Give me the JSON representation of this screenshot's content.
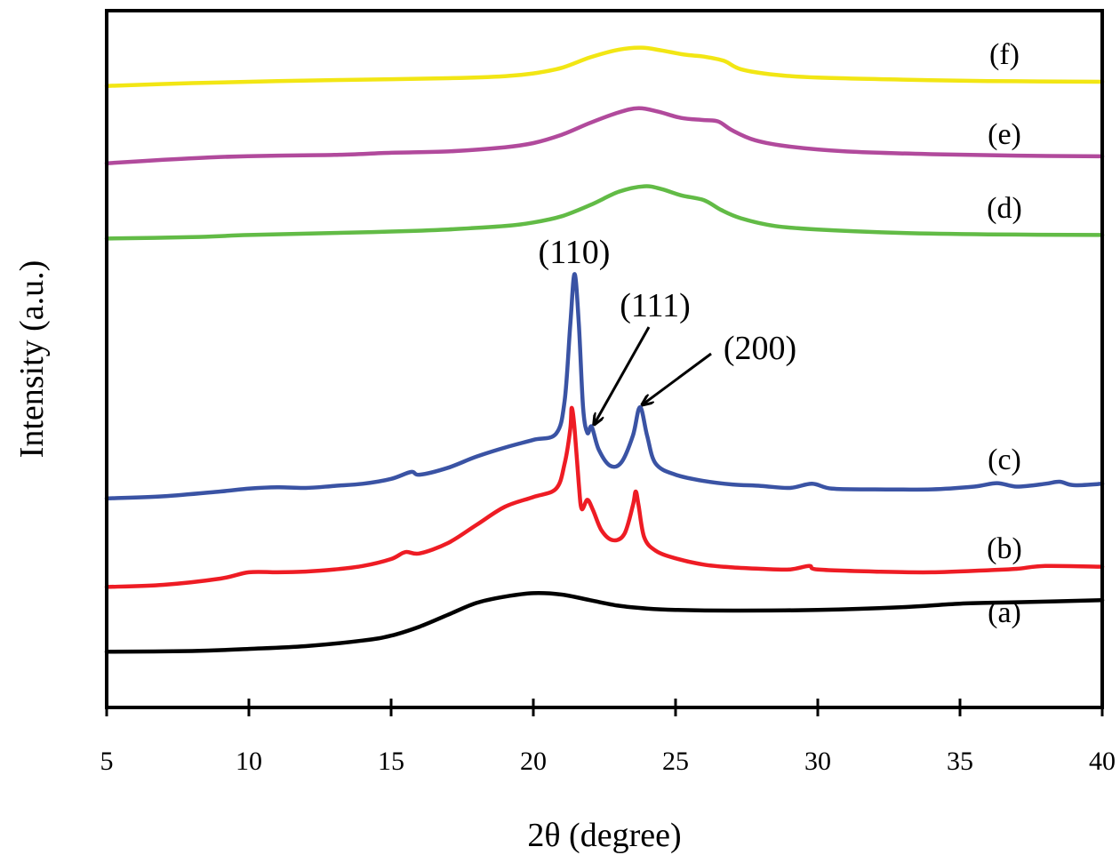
{
  "chart_data": {
    "type": "line",
    "title": "",
    "xlabel": "2θ (degree)",
    "ylabel": "Intensity (a.u.)",
    "xlim": [
      5,
      40
    ],
    "ylim": [
      0,
      100
    ],
    "xticks": [
      5,
      10,
      15,
      20,
      25,
      30,
      35,
      40
    ],
    "xtick_labels": [
      "5",
      "10",
      "15",
      "20",
      "25",
      "30",
      "35",
      "40"
    ],
    "yticks_shown": false,
    "grid": false,
    "legend": "inline labels at right",
    "series": [
      {
        "name": "(a)",
        "color": "#000000",
        "points": [
          [
            5,
            8.0
          ],
          [
            8,
            8.1
          ],
          [
            10,
            8.4
          ],
          [
            12,
            8.8
          ],
          [
            14,
            9.6
          ],
          [
            15,
            10.3
          ],
          [
            16,
            11.6
          ],
          [
            17,
            13.3
          ],
          [
            18,
            15.0
          ],
          [
            19,
            15.9
          ],
          [
            20,
            16.4
          ],
          [
            21,
            16.2
          ],
          [
            22,
            15.4
          ],
          [
            23,
            14.6
          ],
          [
            24,
            14.2
          ],
          [
            25,
            14.0
          ],
          [
            27,
            13.9
          ],
          [
            30,
            14.0
          ],
          [
            33,
            14.4
          ],
          [
            35,
            14.9
          ],
          [
            37,
            15.1
          ],
          [
            40,
            15.4
          ]
        ]
      },
      {
        "name": "(b)",
        "color": "#ee1c24",
        "points": [
          [
            5,
            17.3
          ],
          [
            7,
            17.6
          ],
          [
            9,
            18.5
          ],
          [
            10,
            19.4
          ],
          [
            11,
            19.4
          ],
          [
            12,
            19.5
          ],
          [
            13,
            19.8
          ],
          [
            14,
            20.3
          ],
          [
            15,
            21.3
          ],
          [
            15.5,
            22.3
          ],
          [
            16,
            22.1
          ],
          [
            17,
            23.6
          ],
          [
            18,
            26.2
          ],
          [
            19,
            28.8
          ],
          [
            20,
            30.2
          ],
          [
            20.8,
            31.4
          ],
          [
            21.1,
            35.0
          ],
          [
            21.3,
            40.0
          ],
          [
            21.35,
            43.0
          ],
          [
            21.45,
            40.0
          ],
          [
            21.6,
            32.0
          ],
          [
            21.7,
            28.5
          ],
          [
            21.9,
            29.8
          ],
          [
            22.1,
            28.3
          ],
          [
            22.4,
            25.4
          ],
          [
            22.8,
            24.0
          ],
          [
            23.2,
            24.9
          ],
          [
            23.5,
            29.0
          ],
          [
            23.6,
            31.0
          ],
          [
            23.7,
            29.0
          ],
          [
            23.9,
            24.4
          ],
          [
            24.3,
            22.5
          ],
          [
            25,
            21.4
          ],
          [
            26,
            20.5
          ],
          [
            27,
            20.1
          ],
          [
            28,
            19.9
          ],
          [
            29,
            19.8
          ],
          [
            29.7,
            20.3
          ],
          [
            30,
            19.8
          ],
          [
            32,
            19.5
          ],
          [
            34,
            19.4
          ],
          [
            36,
            19.7
          ],
          [
            37,
            19.9
          ],
          [
            38,
            20.3
          ],
          [
            40,
            20.2
          ]
        ]
      },
      {
        "name": "(c)",
        "color": "#3a53a4",
        "points": [
          [
            5,
            30.0
          ],
          [
            7,
            30.3
          ],
          [
            9,
            31.0
          ],
          [
            10,
            31.4
          ],
          [
            11,
            31.6
          ],
          [
            12,
            31.5
          ],
          [
            13,
            31.8
          ],
          [
            14,
            32.1
          ],
          [
            15,
            32.8
          ],
          [
            15.7,
            33.8
          ],
          [
            16,
            33.4
          ],
          [
            17,
            34.4
          ],
          [
            18,
            36.0
          ],
          [
            19,
            37.3
          ],
          [
            20,
            38.4
          ],
          [
            20.8,
            39.3
          ],
          [
            21.1,
            44.0
          ],
          [
            21.3,
            55.0
          ],
          [
            21.45,
            62.2
          ],
          [
            21.6,
            55.0
          ],
          [
            21.75,
            43.0
          ],
          [
            21.9,
            39.4
          ],
          [
            22.05,
            40.3
          ],
          [
            22.3,
            37.0
          ],
          [
            22.7,
            34.7
          ],
          [
            23.1,
            35.2
          ],
          [
            23.5,
            39.0
          ],
          [
            23.75,
            43.1
          ],
          [
            24.0,
            39.0
          ],
          [
            24.3,
            35.0
          ],
          [
            25,
            33.4
          ],
          [
            26,
            32.5
          ],
          [
            27,
            32.0
          ],
          [
            28,
            31.8
          ],
          [
            29,
            31.5
          ],
          [
            29.8,
            32.1
          ],
          [
            30.5,
            31.4
          ],
          [
            32,
            31.3
          ],
          [
            34,
            31.3
          ],
          [
            35.5,
            31.7
          ],
          [
            36.3,
            32.2
          ],
          [
            37,
            31.7
          ],
          [
            38,
            32.1
          ],
          [
            38.5,
            32.4
          ],
          [
            39,
            31.9
          ],
          [
            40,
            32.1
          ]
        ]
      },
      {
        "name": "(d)",
        "color": "#62bb46",
        "points": [
          [
            5,
            67.3
          ],
          [
            8,
            67.5
          ],
          [
            10,
            67.8
          ],
          [
            13,
            68.1
          ],
          [
            15,
            68.3
          ],
          [
            17,
            68.6
          ],
          [
            19,
            69.1
          ],
          [
            20,
            69.6
          ],
          [
            21,
            70.5
          ],
          [
            22,
            72.1
          ],
          [
            23,
            74.0
          ],
          [
            23.9,
            74.8
          ],
          [
            24.5,
            74.4
          ],
          [
            25.2,
            73.5
          ],
          [
            26,
            72.8
          ],
          [
            26.6,
            71.4
          ],
          [
            27.3,
            70.2
          ],
          [
            28.5,
            69.1
          ],
          [
            30,
            68.6
          ],
          [
            33,
            68.1
          ],
          [
            36,
            67.9
          ],
          [
            40,
            67.8
          ]
        ]
      },
      {
        "name": "(e)",
        "color": "#b14a9c",
        "points": [
          [
            5,
            78.1
          ],
          [
            7,
            78.6
          ],
          [
            9,
            79.0
          ],
          [
            11,
            79.2
          ],
          [
            13,
            79.3
          ],
          [
            15,
            79.6
          ],
          [
            17,
            79.8
          ],
          [
            19,
            80.4
          ],
          [
            20,
            81.0
          ],
          [
            21,
            82.2
          ],
          [
            22,
            83.9
          ],
          [
            23,
            85.4
          ],
          [
            23.7,
            86.0
          ],
          [
            24.4,
            85.5
          ],
          [
            25.2,
            84.6
          ],
          [
            26,
            84.3
          ],
          [
            26.5,
            84.1
          ],
          [
            27,
            82.8
          ],
          [
            27.8,
            81.4
          ],
          [
            29,
            80.5
          ],
          [
            31,
            79.8
          ],
          [
            34,
            79.4
          ],
          [
            37,
            79.2
          ],
          [
            40,
            79.1
          ]
        ]
      },
      {
        "name": "(f)",
        "color": "#f2e614",
        "points": [
          [
            5,
            89.2
          ],
          [
            8,
            89.6
          ],
          [
            11,
            89.9
          ],
          [
            14,
            90.1
          ],
          [
            17,
            90.3
          ],
          [
            19,
            90.6
          ],
          [
            20,
            91.0
          ],
          [
            21,
            91.8
          ],
          [
            22,
            93.3
          ],
          [
            23,
            94.4
          ],
          [
            23.8,
            94.7
          ],
          [
            24.5,
            94.3
          ],
          [
            25.3,
            93.7
          ],
          [
            26,
            93.4
          ],
          [
            26.7,
            92.8
          ],
          [
            27.3,
            91.6
          ],
          [
            28.5,
            90.8
          ],
          [
            30,
            90.4
          ],
          [
            33,
            90.1
          ],
          [
            36,
            89.9
          ],
          [
            40,
            89.8
          ]
        ]
      }
    ],
    "annotations": [
      {
        "text": "(110)",
        "target": [
          21.45,
          62.2
        ],
        "arrow": false
      },
      {
        "text": "(111)",
        "target": [
          22.05,
          40.3
        ],
        "arrow": true
      },
      {
        "text": "(200)",
        "target": [
          23.75,
          43.1
        ],
        "arrow": true
      }
    ]
  }
}
